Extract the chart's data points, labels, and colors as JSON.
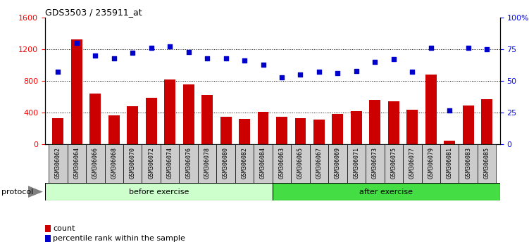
{
  "title": "GDS3503 / 235911_at",
  "samples": [
    "GSM306062",
    "GSM306064",
    "GSM306066",
    "GSM306068",
    "GSM306070",
    "GSM306072",
    "GSM306074",
    "GSM306076",
    "GSM306078",
    "GSM306080",
    "GSM306082",
    "GSM306084",
    "GSM306063",
    "GSM306065",
    "GSM306067",
    "GSM306069",
    "GSM306071",
    "GSM306073",
    "GSM306075",
    "GSM306077",
    "GSM306079",
    "GSM306081",
    "GSM306083",
    "GSM306085"
  ],
  "counts": [
    330,
    1320,
    640,
    370,
    480,
    590,
    820,
    760,
    620,
    350,
    320,
    410,
    350,
    330,
    310,
    380,
    420,
    560,
    540,
    440,
    880,
    50,
    490,
    570
  ],
  "percentiles": [
    57,
    80,
    70,
    68,
    72,
    76,
    77,
    73,
    68,
    68,
    66,
    63,
    53,
    55,
    57,
    56,
    58,
    65,
    67,
    57,
    76,
    27,
    76,
    75
  ],
  "before_exercise_count": 12,
  "after_exercise_count": 12,
  "bar_color": "#cc0000",
  "dot_color": "#0000cc",
  "before_bg": "#ccffcc",
  "after_bg": "#44dd44",
  "label_bg": "#cccccc",
  "ylim_left": [
    0,
    1600
  ],
  "ylim_right": [
    0,
    100
  ],
  "yticks_left": [
    0,
    400,
    800,
    1200,
    1600
  ],
  "yticks_right": [
    0,
    25,
    50,
    75,
    100
  ],
  "grid_lines": [
    400,
    800,
    1200
  ]
}
